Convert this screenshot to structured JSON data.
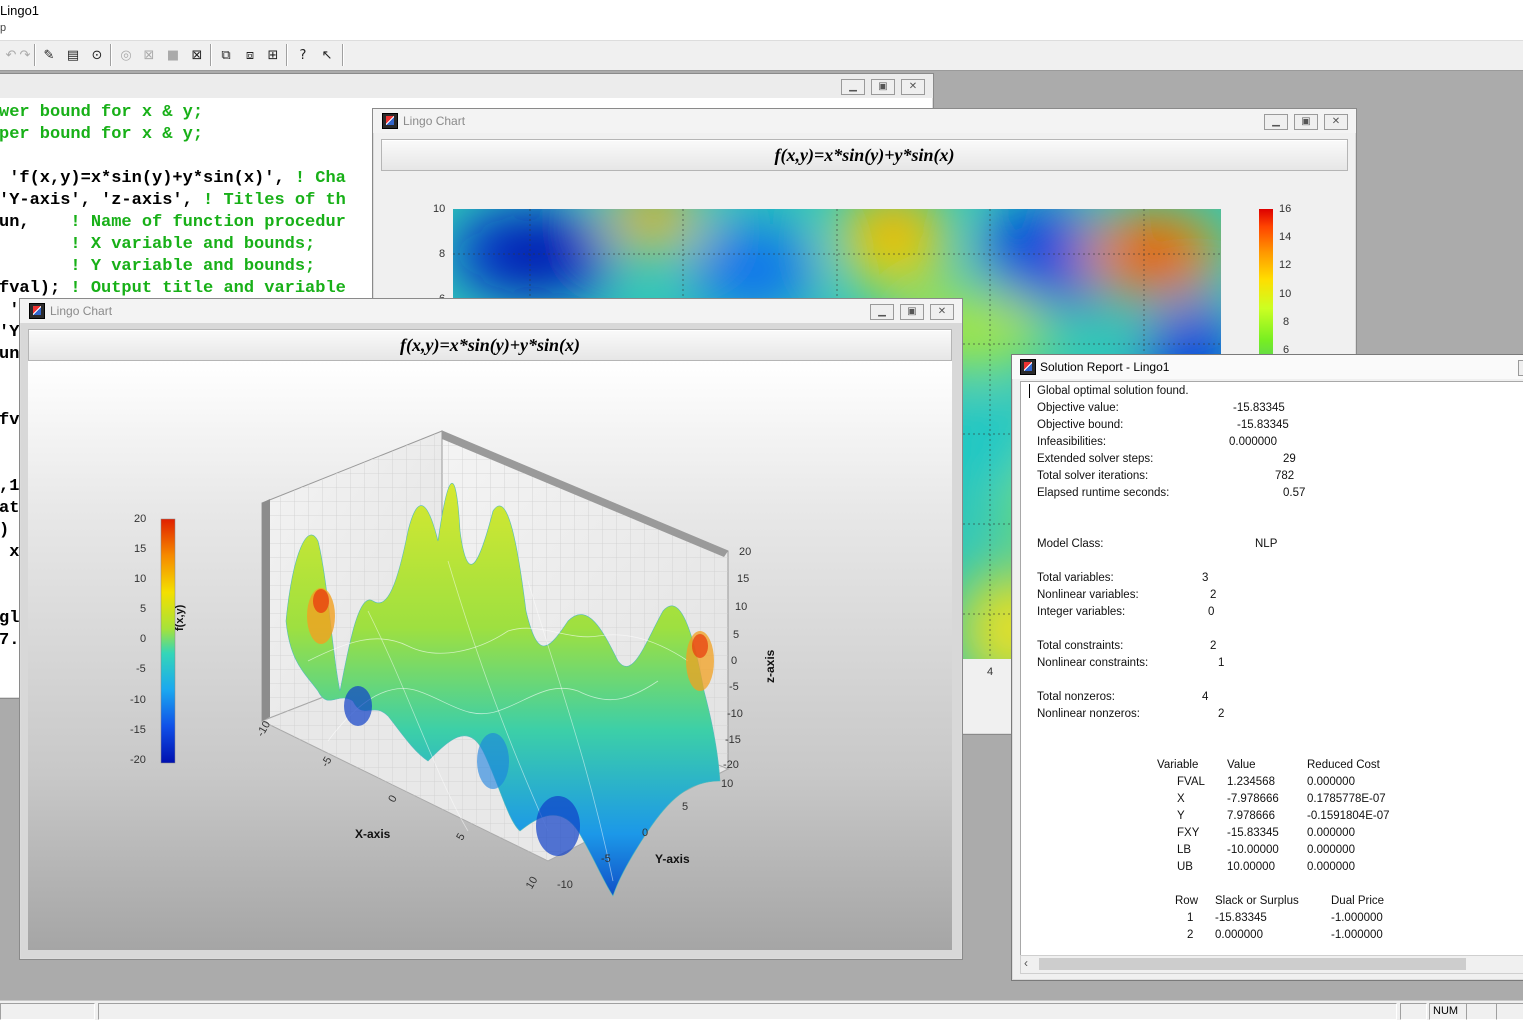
{
  "app": {
    "title": "Lingo1",
    "menu_fragment": "p"
  },
  "editor": {
    "lines": [
      {
        "code": "wer bound for x & y;",
        "comment": ""
      },
      {
        "code": "per bound for x & y;",
        "comment": ""
      },
      {
        "code": "",
        "comment": ""
      },
      {
        "code": " 'f(x,y)=x*sin(y)+y*sin(x)', ",
        "comment": "! Cha"
      },
      {
        "code": "'Y-axis', 'z-axis', ",
        "comment": "! Titles of th"
      },
      {
        "code": "un,    ",
        "comment": "! Name of function procedur"
      },
      {
        "code": "       ",
        "comment": "! X variable and bounds;"
      },
      {
        "code": "       ",
        "comment": "! Y variable and bounds;"
      },
      {
        "code": "fval); ",
        "comment": "! Output title and variable"
      },
      {
        "code": " '",
        "comment": ""
      },
      {
        "code": "'Y",
        "comment": ""
      },
      {
        "code": "un",
        "comment": ""
      },
      {
        "code": "",
        "comment": ""
      },
      {
        "code": "",
        "comment": ""
      },
      {
        "code": "fv",
        "comment": ""
      },
      {
        "code": "",
        "comment": ""
      },
      {
        "code": "",
        "comment": ""
      },
      {
        "code": ",1",
        "comment": ""
      },
      {
        "code": "at",
        "comment": ""
      },
      {
        "code": ")",
        "comment": ""
      },
      {
        "code": " x",
        "comment": ""
      },
      {
        "code": "",
        "comment": ""
      },
      {
        "code": "",
        "comment": ""
      },
      {
        "code": "gl",
        "comment": ""
      },
      {
        "code": "7.",
        "comment": ""
      }
    ]
  },
  "contour_window": {
    "title": "Lingo Chart",
    "heading": "f(x,y)=x*sin(y)+y*sin(x)",
    "y_ticks": [
      "10",
      "8",
      "6"
    ],
    "x_tick": "4",
    "colorbar_ticks": [
      "16",
      "14",
      "12",
      "10",
      "8",
      "6"
    ]
  },
  "surface_window": {
    "title": "Lingo Chart",
    "heading": "f(x,y)=x*sin(y)+y*sin(x)",
    "colorbar_label": "f(x,y)",
    "colorbar_ticks": [
      "20",
      "15",
      "10",
      "5",
      "0",
      "-5",
      "-10",
      "-15",
      "-20"
    ],
    "z_ticks": [
      "20",
      "15",
      "10",
      "5",
      "0",
      "-5",
      "-10",
      "-15",
      "-20"
    ],
    "x_ticks": [
      "-10",
      "-5",
      "0",
      "5",
      "10"
    ],
    "y_ticks": [
      "10",
      "5",
      "0",
      "-5",
      "-10"
    ],
    "x_label": "X-axis",
    "y_label": "Y-axis",
    "z_label": "z-axis"
  },
  "report": {
    "title": "Solution Report - Lingo1",
    "status": "Global optimal solution found.",
    "summary": [
      {
        "label": "Objective value:",
        "value": "-15.83345"
      },
      {
        "label": "Objective bound:",
        "value": "-15.83345"
      },
      {
        "label": "Infeasibilities:",
        "value": "0.000000"
      },
      {
        "label": "Extended solver steps:",
        "value": "29"
      },
      {
        "label": "Total solver iterations:",
        "value": "782"
      },
      {
        "label": "Elapsed runtime seconds:",
        "value": "0.57"
      }
    ],
    "model_class": {
      "label": "Model Class:",
      "value": "NLP"
    },
    "vars": [
      {
        "label": "Total variables:",
        "value": "3"
      },
      {
        "label": "Nonlinear variables:",
        "value": "2"
      },
      {
        "label": "Integer variables:",
        "value": "0"
      }
    ],
    "cons": [
      {
        "label": "Total constraints:",
        "value": "2"
      },
      {
        "label": "Nonlinear constraints:",
        "value": "1"
      }
    ],
    "nonzeros": [
      {
        "label": "Total nonzeros:",
        "value": "4"
      },
      {
        "label": "Nonlinear nonzeros:",
        "value": "2"
      }
    ],
    "var_table": {
      "headers": [
        "Variable",
        "Value",
        "Reduced Cost"
      ],
      "rows": [
        [
          "FVAL",
          "1.234568",
          "0.000000"
        ],
        [
          "X",
          "-7.978666",
          "0.1785778E-07"
        ],
        [
          "Y",
          "7.978666",
          "-0.1591804E-07"
        ],
        [
          "FXY",
          "-15.83345",
          "0.000000"
        ],
        [
          "LB",
          "-10.00000",
          "0.000000"
        ],
        [
          "UB",
          "10.00000",
          "0.000000"
        ]
      ]
    },
    "row_table": {
      "headers": [
        "Row",
        "Slack or Surplus",
        "Dual Price"
      ],
      "rows": [
        [
          "1",
          "-15.83345",
          "-1.000000"
        ],
        [
          "2",
          "0.000000",
          "-1.000000"
        ]
      ]
    }
  },
  "statusbar": {
    "num": "NUM"
  },
  "toolbar": {
    "icons": [
      "undo-icon",
      "redo-icon",
      "find-icon",
      "paste-icon",
      "goto-icon",
      "solve-icon",
      "close-icon",
      "stop-icon",
      "options-icon",
      "window-icon",
      "cascade-icon",
      "tile-icon",
      "help-icon",
      "context-help-icon"
    ]
  }
}
